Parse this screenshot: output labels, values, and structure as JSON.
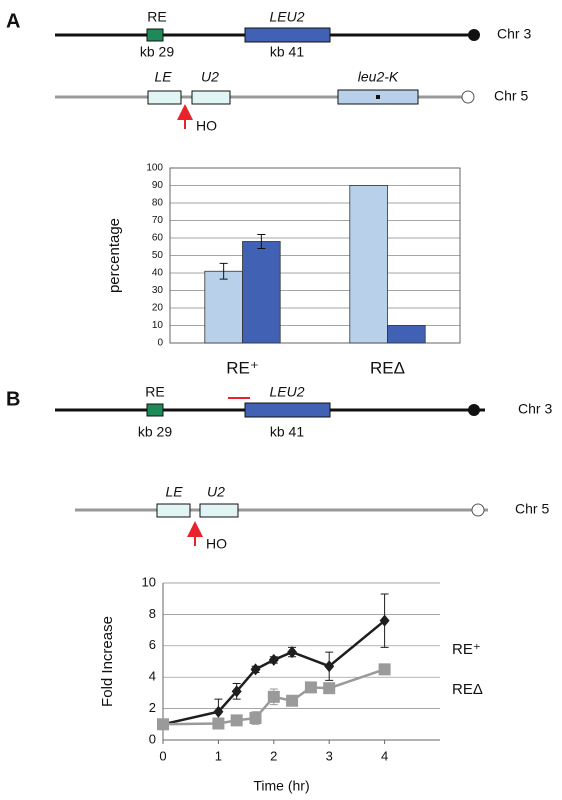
{
  "panel_a": {
    "label": "A",
    "chr3": {
      "re": "RE",
      "re_pos": "kb 29",
      "gene": "LEU2",
      "gene_pos": "kb 41",
      "name": "Chr 3"
    },
    "chr5": {
      "left": "LE",
      "right": "U2",
      "cut": "HO",
      "gene": "leu2-K",
      "name": "Chr 5"
    }
  },
  "panel_b": {
    "label": "B",
    "chr3": {
      "re": "RE",
      "re_pos": "kb 29",
      "gene": "LEU2",
      "gene_pos": "kb 41",
      "name": "Chr 3"
    },
    "chr5": {
      "left": "LE",
      "right": "U2",
      "cut": "HO",
      "name": "Chr 5"
    }
  },
  "chart_data": [
    {
      "type": "bar",
      "ylabel": "percentage",
      "categories": [
        "RE⁺",
        "REΔ"
      ],
      "series": [
        {
          "color": "#b9d0ea",
          "values": [
            41,
            90
          ],
          "errors": [
            4.5,
            null
          ]
        },
        {
          "color": "#4161b5",
          "values": [
            58,
            10
          ],
          "errors": [
            4,
            null
          ]
        }
      ],
      "ylim": [
        0,
        100
      ],
      "yticks": [
        0,
        10,
        20,
        30,
        40,
        50,
        60,
        70,
        80,
        90,
        100
      ],
      "grid": true
    },
    {
      "type": "line",
      "xlabel": "Time (hr)",
      "ylabel": "Fold Increase",
      "series": [
        {
          "name": "RE⁺",
          "color": "#1e1e1e",
          "marker": "diamond",
          "x": [
            0,
            1,
            1.33,
            1.67,
            2,
            2.33,
            3,
            4
          ],
          "values": [
            1,
            1.8,
            3.1,
            4.5,
            5.1,
            5.6,
            4.7,
            7.6
          ],
          "errors": [
            null,
            0.8,
            0.5,
            0.2,
            0.2,
            0.3,
            0.9,
            1.7
          ]
        },
        {
          "name": "REΔ",
          "color": "#9a9a9a",
          "marker": "square",
          "x": [
            0,
            1,
            1.33,
            1.67,
            2,
            2.33,
            2.67,
            3,
            4
          ],
          "values": [
            1,
            1.05,
            1.25,
            1.4,
            2.75,
            2.5,
            3.35,
            3.3,
            4.5
          ],
          "errors": [
            null,
            null,
            null,
            0.4,
            0.5,
            null,
            null,
            null,
            null
          ]
        }
      ],
      "xlim": [
        0,
        5
      ],
      "xticks": [
        0,
        1,
        2,
        3,
        4
      ],
      "ylim": [
        0,
        10
      ],
      "yticks": [
        0,
        2,
        4,
        6,
        8,
        10
      ],
      "grid": true
    }
  ]
}
